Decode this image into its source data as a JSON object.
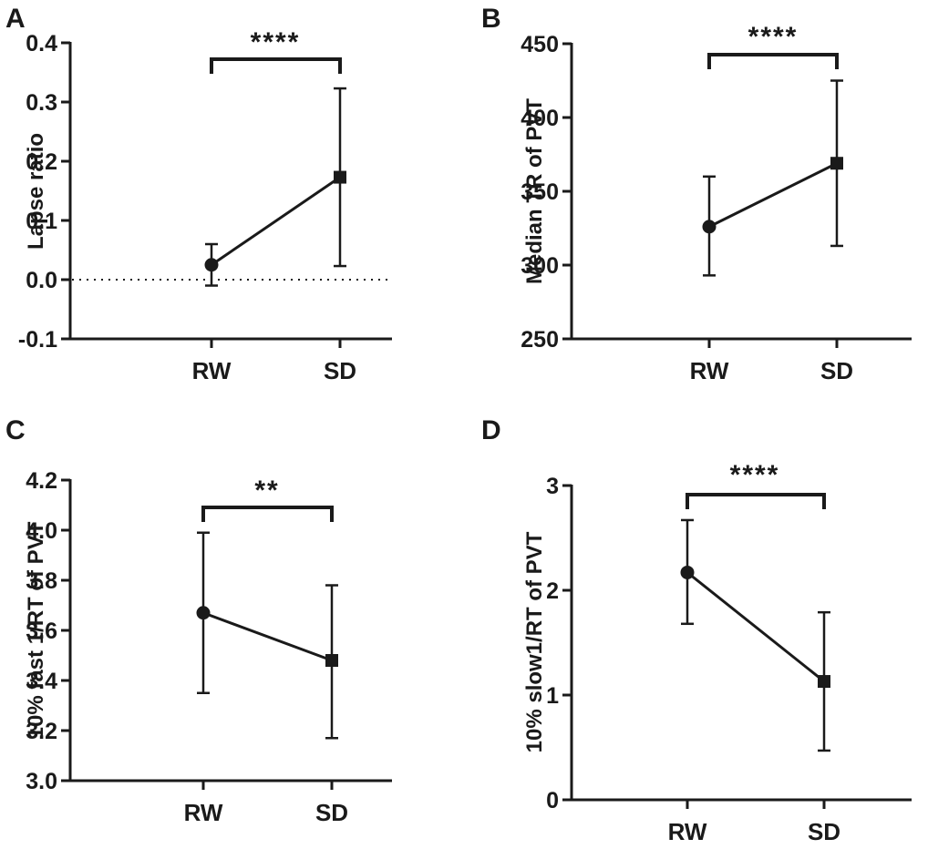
{
  "chart_data": [
    {
      "panel": "A",
      "type": "line",
      "ylabel": "Lapse ratio",
      "categories": [
        "RW",
        "SD"
      ],
      "yticks": [
        "0.4",
        "0.3",
        "0.2",
        "0.1",
        "0.0",
        "-0.1"
      ],
      "ylim": [
        -0.1,
        0.4
      ],
      "series": [
        {
          "name": "Lapse ratio",
          "values": [
            0.025,
            0.173
          ],
          "error_low": [
            -0.01,
            0.023
          ],
          "error_high": [
            0.06,
            0.323
          ],
          "markers": [
            "circle",
            "square"
          ]
        }
      ],
      "significance": "****",
      "reference_line_y": 0.0
    },
    {
      "panel": "B",
      "type": "line",
      "ylabel": "Median TR of PVT",
      "categories": [
        "RW",
        "SD"
      ],
      "yticks": [
        "450",
        "400",
        "350",
        "300",
        "250"
      ],
      "ylim": [
        250,
        450
      ],
      "series": [
        {
          "name": "Median TR of PVT",
          "values": [
            326,
            369
          ],
          "error_low": [
            293,
            313
          ],
          "error_high": [
            360,
            425
          ],
          "markers": [
            "circle",
            "square"
          ]
        }
      ],
      "significance": "****"
    },
    {
      "panel": "C",
      "type": "line",
      "ylabel": "10% fast 1/RT of PVT",
      "categories": [
        "RW",
        "SD"
      ],
      "yticks": [
        "4.2",
        "4.0",
        "3.8",
        "3.6",
        "3.4",
        "3.2",
        "3.0"
      ],
      "ylim": [
        3.0,
        4.2
      ],
      "series": [
        {
          "name": "10% fast 1/RT of PVT",
          "values": [
            3.67,
            3.48
          ],
          "error_low": [
            3.35,
            3.17
          ],
          "error_high": [
            3.99,
            3.78
          ],
          "markers": [
            "circle",
            "square"
          ]
        }
      ],
      "significance": "**"
    },
    {
      "panel": "D",
      "type": "line",
      "ylabel": "10% slow1/RT of PVT",
      "categories": [
        "RW",
        "SD"
      ],
      "yticks": [
        "3",
        "2",
        "1",
        "0"
      ],
      "ylim": [
        0,
        3
      ],
      "series": [
        {
          "name": "10% slow1/RT of PVT",
          "values": [
            2.17,
            1.13
          ],
          "error_low": [
            1.68,
            0.47
          ],
          "error_high": [
            2.67,
            1.79
          ],
          "markers": [
            "circle",
            "square"
          ]
        }
      ],
      "significance": "****"
    }
  ],
  "colors": {
    "ink": "#1a1a1a",
    "background": "#ffffff"
  }
}
